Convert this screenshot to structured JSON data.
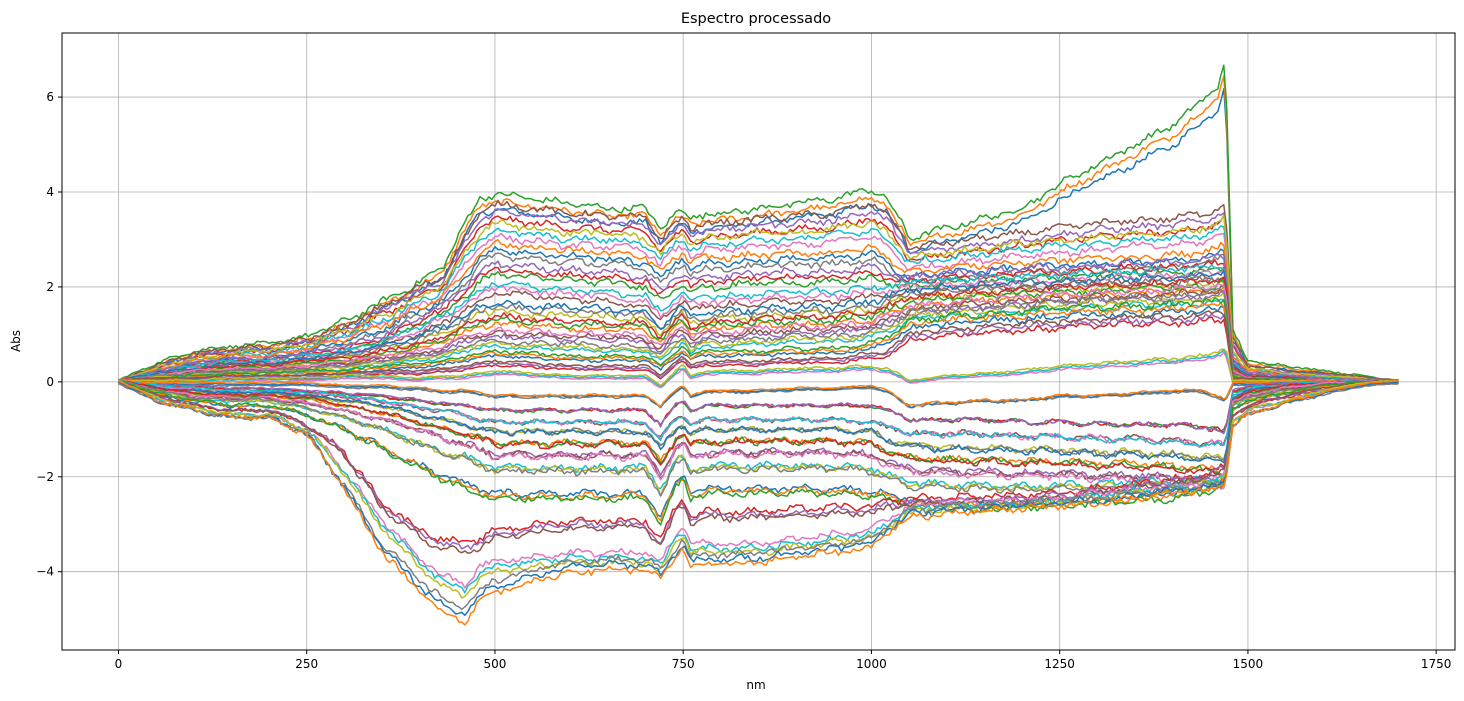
{
  "chart_data": {
    "type": "line",
    "title": "Espectro processado",
    "xlabel": "nm",
    "ylabel": "Abs",
    "xlim": [
      -75,
      1775
    ],
    "ylim": [
      -5.65,
      7.35
    ],
    "xticks": [
      0,
      250,
      500,
      750,
      1000,
      1250,
      1500,
      1750
    ],
    "yticks": [
      -4,
      -2,
      0,
      2,
      4,
      6
    ],
    "grid": true,
    "series_colors": [
      "#1f77b4",
      "#ff7f0e",
      "#2ca02c",
      "#d62728",
      "#9467bd",
      "#8c564b",
      "#e377c2",
      "#17becf",
      "#bcbd22",
      "#7f7f7f"
    ],
    "x": [
      0,
      50,
      100,
      150,
      200,
      250,
      300,
      350,
      400,
      430,
      460,
      480,
      500,
      550,
      600,
      650,
      700,
      720,
      740,
      750,
      760,
      780,
      800,
      850,
      900,
      950,
      1000,
      1020,
      1040,
      1050,
      1100,
      1150,
      1200,
      1250,
      1300,
      1350,
      1400,
      1440,
      1460,
      1470,
      1480,
      1500,
      1550,
      1600,
      1650,
      1700
    ],
    "series": [
      {
        "values": [
          0,
          0.35,
          0.6,
          0.7,
          0.75,
          0.9,
          1.2,
          1.6,
          2.0,
          2.3,
          3.2,
          3.7,
          3.8,
          3.7,
          3.6,
          3.5,
          3.5,
          3.1,
          3.4,
          3.45,
          3.3,
          3.4,
          3.4,
          3.5,
          3.6,
          3.7,
          3.9,
          3.7,
          3.2,
          2.9,
          3.1,
          3.3,
          3.5,
          4.0,
          4.4,
          4.8,
          5.2,
          5.7,
          6.0,
          6.6,
          1.0,
          0.4,
          0.3,
          0.2,
          0.1,
          0
        ]
      },
      {
        "values": [
          0,
          0.3,
          0.55,
          0.65,
          0.7,
          0.85,
          1.1,
          1.5,
          1.9,
          2.1,
          2.9,
          3.4,
          3.6,
          3.5,
          3.4,
          3.35,
          3.3,
          2.9,
          3.2,
          3.3,
          3.1,
          3.2,
          3.2,
          3.3,
          3.35,
          3.4,
          3.6,
          3.4,
          3.0,
          2.7,
          2.8,
          2.9,
          3.0,
          3.1,
          3.2,
          3.25,
          3.3,
          3.4,
          3.5,
          3.6,
          0.8,
          0.3,
          0.2,
          0.15,
          0.08,
          0
        ]
      },
      {
        "values": [
          0,
          0.25,
          0.45,
          0.55,
          0.6,
          0.75,
          1.0,
          1.3,
          1.7,
          1.9,
          2.6,
          3.0,
          3.2,
          3.1,
          3.0,
          3.0,
          2.9,
          2.6,
          2.9,
          3.0,
          2.8,
          2.9,
          2.9,
          3.0,
          3.0,
          3.1,
          3.2,
          3.0,
          2.7,
          2.5,
          2.6,
          2.7,
          2.8,
          2.85,
          2.9,
          3.0,
          3.0,
          3.1,
          3.2,
          3.3,
          0.6,
          0.25,
          0.15,
          0.1,
          0.05,
          0
        ]
      },
      {
        "values": [
          0,
          0.2,
          0.4,
          0.5,
          0.5,
          0.65,
          0.85,
          1.1,
          1.5,
          1.7,
          2.2,
          2.6,
          2.8,
          2.7,
          2.65,
          2.6,
          2.5,
          2.2,
          2.5,
          2.6,
          2.4,
          2.5,
          2.5,
          2.55,
          2.6,
          2.6,
          2.7,
          2.5,
          2.3,
          2.2,
          2.3,
          2.35,
          2.4,
          2.45,
          2.5,
          2.5,
          2.55,
          2.6,
          2.7,
          2.8,
          0.5,
          0.2,
          0.1,
          0.05,
          0.03,
          0
        ]
      },
      {
        "values": [
          0,
          0.2,
          0.35,
          0.45,
          0.45,
          0.55,
          0.7,
          0.9,
          1.3,
          1.5,
          1.9,
          2.2,
          2.4,
          2.3,
          2.25,
          2.2,
          2.1,
          1.8,
          2.1,
          2.2,
          2.0,
          2.1,
          2.1,
          2.2,
          2.2,
          2.2,
          2.3,
          2.2,
          2.1,
          2.1,
          2.2,
          2.2,
          2.3,
          2.3,
          2.35,
          2.4,
          2.4,
          2.45,
          2.5,
          2.5,
          0.4,
          0.15,
          0.1,
          0.05,
          0.02,
          0
        ]
      },
      {
        "values": [
          0,
          0.15,
          0.3,
          0.4,
          0.4,
          0.5,
          0.6,
          0.8,
          1.1,
          1.3,
          1.6,
          1.8,
          2.0,
          1.9,
          1.85,
          1.8,
          1.7,
          1.4,
          1.7,
          1.8,
          1.6,
          1.7,
          1.7,
          1.75,
          1.8,
          1.8,
          1.9,
          1.9,
          1.95,
          2.0,
          2.05,
          2.1,
          2.1,
          2.15,
          2.2,
          2.2,
          2.25,
          2.3,
          2.3,
          2.35,
          0.35,
          0.1,
          0.05,
          0.03,
          0.01,
          0
        ]
      },
      {
        "values": [
          0,
          0.15,
          0.25,
          0.35,
          0.35,
          0.45,
          0.55,
          0.7,
          0.9,
          1.1,
          1.3,
          1.5,
          1.6,
          1.5,
          1.5,
          1.45,
          1.4,
          1.1,
          1.4,
          1.5,
          1.3,
          1.4,
          1.4,
          1.45,
          1.5,
          1.5,
          1.6,
          1.7,
          1.8,
          1.85,
          1.9,
          1.95,
          2.0,
          2.0,
          2.05,
          2.1,
          2.1,
          2.15,
          2.2,
          2.2,
          0.3,
          0.1,
          0.05,
          0.02,
          0.01,
          0
        ]
      },
      {
        "values": [
          0,
          0.1,
          0.2,
          0.3,
          0.3,
          0.4,
          0.45,
          0.6,
          0.75,
          0.9,
          1.1,
          1.25,
          1.3,
          1.25,
          1.2,
          1.2,
          1.15,
          0.9,
          1.2,
          1.3,
          1.1,
          1.2,
          1.2,
          1.25,
          1.3,
          1.3,
          1.4,
          1.5,
          1.6,
          1.7,
          1.75,
          1.8,
          1.85,
          1.9,
          1.9,
          1.95,
          2.0,
          2.0,
          2.05,
          2.1,
          0.25,
          0.08,
          0.04,
          0.02,
          0.01,
          0
        ]
      },
      {
        "values": [
          0,
          0.1,
          0.2,
          0.25,
          0.25,
          0.3,
          0.4,
          0.5,
          0.6,
          0.7,
          0.9,
          1.0,
          1.0,
          1.0,
          0.95,
          0.95,
          0.9,
          0.7,
          1.0,
          1.1,
          0.9,
          1.0,
          1.0,
          1.05,
          1.1,
          1.1,
          1.2,
          1.3,
          1.45,
          1.5,
          1.6,
          1.65,
          1.7,
          1.75,
          1.8,
          1.8,
          1.85,
          1.9,
          1.9,
          1.95,
          0.2,
          0.06,
          0.03,
          0.01,
          0.01,
          0
        ]
      },
      {
        "values": [
          0,
          0.1,
          0.15,
          0.2,
          0.2,
          0.25,
          0.3,
          0.4,
          0.5,
          0.55,
          0.7,
          0.8,
          0.8,
          0.75,
          0.75,
          0.7,
          0.7,
          0.5,
          0.8,
          0.9,
          0.7,
          0.8,
          0.8,
          0.85,
          0.9,
          0.9,
          1.0,
          1.1,
          1.3,
          1.4,
          1.45,
          1.5,
          1.55,
          1.6,
          1.65,
          1.7,
          1.7,
          1.75,
          1.8,
          1.8,
          0.15,
          0.05,
          0.02,
          0.01,
          0,
          0
        ]
      },
      {
        "values": [
          0,
          0.05,
          0.1,
          0.15,
          0.15,
          0.2,
          0.2,
          0.3,
          0.35,
          0.4,
          0.5,
          0.55,
          0.6,
          0.55,
          0.5,
          0.5,
          0.5,
          0.3,
          0.6,
          0.7,
          0.5,
          0.6,
          0.6,
          0.6,
          0.65,
          0.65,
          0.75,
          0.9,
          1.1,
          1.2,
          1.3,
          1.35,
          1.4,
          1.45,
          1.5,
          1.5,
          1.55,
          1.6,
          1.6,
          1.65,
          0.1,
          0.03,
          0.02,
          0.01,
          0,
          0
        ]
      },
      {
        "values": [
          0,
          0.05,
          0.05,
          0.1,
          0.1,
          0.1,
          0.15,
          0.2,
          0.2,
          0.25,
          0.3,
          0.35,
          0.4,
          0.35,
          0.3,
          0.3,
          0.3,
          0.1,
          0.4,
          0.5,
          0.3,
          0.4,
          0.4,
          0.4,
          0.45,
          0.45,
          0.55,
          0.6,
          0.8,
          0.95,
          1.05,
          1.1,
          1.15,
          1.2,
          1.25,
          1.3,
          1.3,
          1.35,
          1.4,
          1.4,
          0.05,
          0.02,
          0.01,
          0,
          0,
          0
        ]
      },
      {
        "values": [
          0,
          0.0,
          0.0,
          0.05,
          0.05,
          0.05,
          0.1,
          0.1,
          0.05,
          0.1,
          0.1,
          0.15,
          0.2,
          0.15,
          0.1,
          0.1,
          0.1,
          -0.1,
          0.2,
          0.3,
          0.1,
          0.2,
          0.2,
          0.2,
          0.25,
          0.25,
          0.3,
          0.25,
          0.1,
          0.0,
          0.1,
          0.15,
          0.2,
          0.3,
          0.35,
          0.4,
          0.45,
          0.5,
          0.6,
          0.7,
          0.0,
          0.0,
          0.0,
          0,
          0,
          0
        ]
      },
      {
        "values": [
          0,
          -0.05,
          -0.05,
          -0.05,
          -0.05,
          -0.05,
          -0.1,
          -0.1,
          -0.15,
          -0.2,
          -0.2,
          -0.25,
          -0.3,
          -0.3,
          -0.3,
          -0.3,
          -0.3,
          -0.5,
          -0.2,
          -0.1,
          -0.3,
          -0.2,
          -0.2,
          -0.2,
          -0.15,
          -0.15,
          -0.1,
          -0.2,
          -0.4,
          -0.5,
          -0.45,
          -0.4,
          -0.4,
          -0.3,
          -0.3,
          -0.25,
          -0.2,
          -0.2,
          -0.3,
          -0.4,
          -0.05,
          -0.05,
          -0.02,
          0,
          0,
          0
        ]
      },
      {
        "values": [
          0,
          -0.1,
          -0.1,
          -0.15,
          -0.15,
          -0.2,
          -0.25,
          -0.3,
          -0.4,
          -0.45,
          -0.5,
          -0.55,
          -0.6,
          -0.6,
          -0.6,
          -0.6,
          -0.6,
          -0.9,
          -0.5,
          -0.4,
          -0.6,
          -0.5,
          -0.5,
          -0.5,
          -0.5,
          -0.5,
          -0.5,
          -0.6,
          -0.7,
          -0.8,
          -0.8,
          -0.8,
          -0.85,
          -0.85,
          -0.9,
          -0.9,
          -0.9,
          -0.95,
          -1.0,
          -1.1,
          -0.2,
          -0.1,
          -0.05,
          -0.02,
          0,
          0
        ]
      },
      {
        "values": [
          0,
          -0.1,
          -0.15,
          -0.2,
          -0.2,
          -0.25,
          -0.3,
          -0.4,
          -0.55,
          -0.6,
          -0.7,
          -0.8,
          -0.85,
          -0.85,
          -0.85,
          -0.85,
          -0.85,
          -1.2,
          -0.8,
          -0.7,
          -0.9,
          -0.8,
          -0.8,
          -0.8,
          -0.8,
          -0.8,
          -0.85,
          -0.95,
          -1.0,
          -1.1,
          -1.1,
          -1.1,
          -1.15,
          -1.15,
          -1.2,
          -1.2,
          -1.25,
          -1.3,
          -1.3,
          -1.4,
          -0.3,
          -0.15,
          -0.08,
          -0.03,
          -0.01,
          0
        ]
      },
      {
        "values": [
          0,
          -0.15,
          -0.2,
          -0.25,
          -0.25,
          -0.3,
          -0.4,
          -0.5,
          -0.7,
          -0.8,
          -0.9,
          -1.0,
          -1.05,
          -1.05,
          -1.05,
          -1.05,
          -1.05,
          -1.4,
          -1.0,
          -0.9,
          -1.1,
          -1.0,
          -1.0,
          -1.0,
          -1.0,
          -1.0,
          -1.05,
          -1.2,
          -1.3,
          -1.35,
          -1.4,
          -1.4,
          -1.45,
          -1.45,
          -1.5,
          -1.5,
          -1.55,
          -1.6,
          -1.6,
          -1.7,
          -0.35,
          -0.2,
          -0.1,
          -0.05,
          -0.02,
          0
        ]
      },
      {
        "values": [
          0,
          -0.15,
          -0.25,
          -0.3,
          -0.3,
          -0.35,
          -0.5,
          -0.65,
          -0.85,
          -1.0,
          -1.1,
          -1.2,
          -1.3,
          -1.3,
          -1.3,
          -1.3,
          -1.3,
          -1.7,
          -1.2,
          -1.1,
          -1.35,
          -1.25,
          -1.25,
          -1.25,
          -1.25,
          -1.25,
          -1.3,
          -1.45,
          -1.55,
          -1.6,
          -1.65,
          -1.65,
          -1.7,
          -1.7,
          -1.75,
          -1.75,
          -1.8,
          -1.85,
          -1.9,
          -2.0,
          -0.4,
          -0.25,
          -0.1,
          -0.05,
          -0.02,
          0
        ]
      },
      {
        "values": [
          0,
          -0.2,
          -0.3,
          -0.35,
          -0.35,
          -0.45,
          -0.6,
          -0.8,
          -1.0,
          -1.2,
          -1.3,
          -1.45,
          -1.55,
          -1.55,
          -1.55,
          -1.55,
          -1.55,
          -2.0,
          -1.4,
          -1.3,
          -1.6,
          -1.5,
          -1.5,
          -1.5,
          -1.5,
          -1.5,
          -1.55,
          -1.7,
          -1.8,
          -1.85,
          -1.9,
          -1.9,
          -1.95,
          -1.95,
          -2.0,
          -2.0,
          -2.05,
          -2.1,
          -2.1,
          -2.2,
          -0.45,
          -0.3,
          -0.15,
          -0.05,
          -0.02,
          0
        ]
      },
      {
        "values": [
          0,
          -0.2,
          -0.35,
          -0.4,
          -0.4,
          -0.55,
          -0.75,
          -1.0,
          -1.3,
          -1.5,
          -1.6,
          -1.75,
          -1.85,
          -1.85,
          -1.85,
          -1.85,
          -1.85,
          -2.3,
          -1.7,
          -1.6,
          -1.9,
          -1.8,
          -1.8,
          -1.8,
          -1.8,
          -1.8,
          -1.85,
          -2.0,
          -2.1,
          -2.15,
          -2.2,
          -2.2,
          -2.25,
          -2.2,
          -2.2,
          -2.15,
          -2.15,
          -2.1,
          -2.1,
          -2.2,
          -0.5,
          -0.35,
          -0.2,
          -0.1,
          -0.03,
          0
        ]
      },
      {
        "values": [
          0,
          -0.25,
          -0.4,
          -0.5,
          -0.5,
          -0.7,
          -1.0,
          -1.4,
          -1.8,
          -2.0,
          -2.2,
          -2.3,
          -2.4,
          -2.4,
          -2.4,
          -2.4,
          -2.4,
          -2.9,
          -2.2,
          -2.0,
          -2.4,
          -2.3,
          -2.3,
          -2.3,
          -2.3,
          -2.3,
          -2.35,
          -2.4,
          -2.5,
          -2.55,
          -2.6,
          -2.6,
          -2.6,
          -2.55,
          -2.5,
          -2.45,
          -2.4,
          -2.3,
          -2.2,
          -2.0,
          -0.6,
          -0.4,
          -0.25,
          -0.1,
          -0.03,
          0
        ]
      },
      {
        "values": [
          0,
          -0.3,
          -0.5,
          -0.6,
          -0.6,
          -0.9,
          -1.5,
          -2.6,
          -3.2,
          -3.4,
          -3.5,
          -3.4,
          -3.2,
          -3.1,
          -3.0,
          -3.0,
          -3.0,
          -3.4,
          -2.7,
          -2.5,
          -2.9,
          -2.8,
          -2.8,
          -2.8,
          -2.75,
          -2.7,
          -2.7,
          -2.6,
          -2.55,
          -2.5,
          -2.5,
          -2.45,
          -2.45,
          -2.4,
          -2.3,
          -2.2,
          -2.1,
          -2.0,
          -1.9,
          -1.8,
          -0.7,
          -0.5,
          -0.3,
          -0.15,
          -0.05,
          0
        ]
      },
      {
        "values": [
          0,
          -0.35,
          -0.55,
          -0.7,
          -0.7,
          -1.0,
          -1.9,
          -3.0,
          -3.8,
          -4.2,
          -4.4,
          -4.0,
          -3.9,
          -3.8,
          -3.7,
          -3.7,
          -3.7,
          -3.9,
          -3.3,
          -3.1,
          -3.5,
          -3.5,
          -3.5,
          -3.5,
          -3.4,
          -3.3,
          -3.2,
          -3.0,
          -2.8,
          -2.7,
          -2.6,
          -2.6,
          -2.55,
          -2.5,
          -2.4,
          -2.3,
          -2.25,
          -2.2,
          -2.1,
          -2.0,
          -0.8,
          -0.6,
          -0.4,
          -0.2,
          -0.05,
          0
        ]
      },
      {
        "values": [
          0,
          -0.4,
          -0.6,
          -0.75,
          -0.75,
          -1.1,
          -2.2,
          -3.5,
          -4.3,
          -4.7,
          -4.9,
          -4.5,
          -4.3,
          -4.1,
          -3.9,
          -3.85,
          -3.85,
          -4.05,
          -3.6,
          -3.4,
          -3.8,
          -3.75,
          -3.75,
          -3.7,
          -3.6,
          -3.5,
          -3.4,
          -3.1,
          -2.9,
          -2.8,
          -2.7,
          -2.65,
          -2.6,
          -2.55,
          -2.5,
          -2.4,
          -2.3,
          -2.25,
          -2.2,
          -2.1,
          -0.9,
          -0.7,
          -0.45,
          -0.25,
          -0.07,
          0
        ]
      }
    ]
  }
}
